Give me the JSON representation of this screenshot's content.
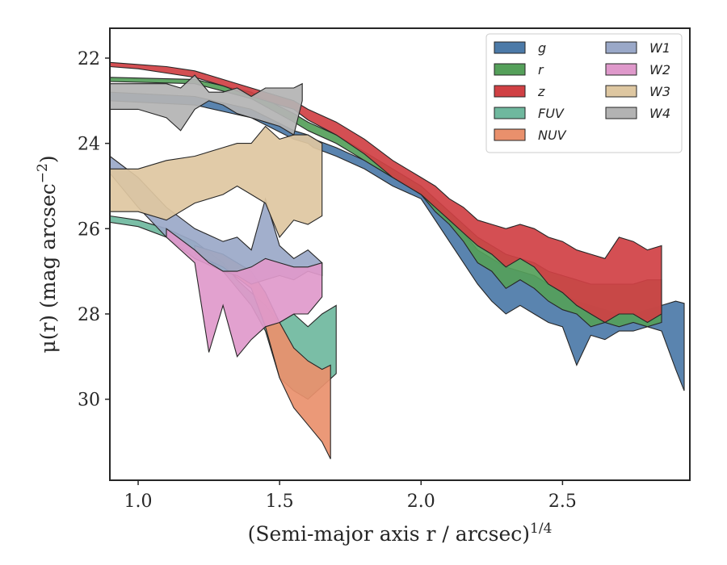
{
  "chart_data": {
    "type": "area",
    "title": "",
    "xlabel": "(Semi-major axis r / arcsec)",
    "xlabel_exponent": "1/4",
    "ylabel": "μ(r) (mag arcsec",
    "ylabel_exponent": "−2",
    "xlim": [
      0.9,
      2.95
    ],
    "ylim": [
      31.9,
      21.3
    ],
    "y_inverted": true,
    "xticks": [
      1.0,
      1.5,
      2.0,
      2.5
    ],
    "xtick_labels": [
      "1.0",
      "1.5",
      "2.0",
      "2.5"
    ],
    "yticks": [
      22,
      24,
      26,
      28,
      30
    ],
    "ytick_labels": [
      "22",
      "24",
      "26",
      "28",
      "30"
    ],
    "grid": false,
    "legend_position": "top-right",
    "legend_columns": 2,
    "series": [
      {
        "name": "g",
        "color": "#4c7aa8",
        "x": [
          0.9,
          1.2,
          1.4,
          1.55,
          1.6,
          1.62,
          1.7,
          1.8,
          1.9,
          2.0,
          2.05,
          2.1,
          2.15,
          2.2,
          2.25,
          2.3,
          2.35,
          2.4,
          2.45,
          2.5,
          2.55,
          2.6,
          2.65,
          2.7,
          2.75,
          2.8,
          2.85,
          2.9,
          2.93
        ],
        "y_upper": [
          22.8,
          22.9,
          23.2,
          23.7,
          23.8,
          23.9,
          24.1,
          24.4,
          24.8,
          25.1,
          25.4,
          25.8,
          26.1,
          26.5,
          26.7,
          26.9,
          27.0,
          27.1,
          27.3,
          27.5,
          27.7,
          27.8,
          27.9,
          28.0,
          28.0,
          27.9,
          27.8,
          27.7,
          27.75
        ],
        "y_lower": [
          23.0,
          23.1,
          23.4,
          23.9,
          24.0,
          24.1,
          24.3,
          24.6,
          25.0,
          25.3,
          25.8,
          26.3,
          26.8,
          27.3,
          27.7,
          28.0,
          27.8,
          28.0,
          28.2,
          28.3,
          29.2,
          28.5,
          28.6,
          28.4,
          28.4,
          28.3,
          28.4,
          29.3,
          29.8
        ]
      },
      {
        "name": "r",
        "color": "#55a05a",
        "x": [
          0.9,
          1.2,
          1.4,
          1.55,
          1.6,
          1.7,
          1.8,
          1.9,
          2.0,
          2.05,
          2.1,
          2.15,
          2.2,
          2.25,
          2.3,
          2.35,
          2.4,
          2.45,
          2.5,
          2.55,
          2.6,
          2.65,
          2.7,
          2.75,
          2.8,
          2.85
        ],
        "y_upper": [
          22.45,
          22.5,
          22.8,
          23.3,
          23.5,
          23.8,
          24.2,
          24.6,
          25.0,
          25.3,
          25.6,
          25.9,
          26.2,
          26.4,
          26.6,
          26.7,
          26.8,
          27.0,
          27.1,
          27.2,
          27.3,
          27.3,
          27.3,
          27.3,
          27.2,
          27.2
        ],
        "y_lower": [
          22.55,
          22.6,
          22.95,
          23.5,
          23.7,
          24.0,
          24.4,
          24.8,
          25.2,
          25.6,
          25.9,
          26.3,
          26.8,
          27.0,
          27.4,
          27.2,
          27.4,
          27.7,
          27.9,
          28.0,
          28.3,
          28.2,
          28.3,
          28.2,
          28.3,
          28.2
        ]
      },
      {
        "name": "z",
        "color": "#d04044",
        "x": [
          0.9,
          1.0,
          1.1,
          1.2,
          1.3,
          1.4,
          1.5,
          1.55,
          1.6,
          1.7,
          1.8,
          1.9,
          2.0,
          2.05,
          2.1,
          2.15,
          2.2,
          2.25,
          2.3,
          2.35,
          2.4,
          2.45,
          2.5,
          2.55,
          2.6,
          2.65,
          2.7,
          2.75,
          2.8,
          2.85
        ],
        "y_upper": [
          22.1,
          22.15,
          22.2,
          22.3,
          22.5,
          22.7,
          22.9,
          23.0,
          23.2,
          23.5,
          23.9,
          24.4,
          24.8,
          25.0,
          25.3,
          25.5,
          25.8,
          25.9,
          26.0,
          25.9,
          26.0,
          26.2,
          26.3,
          26.5,
          26.6,
          26.7,
          26.2,
          26.3,
          26.5,
          26.4
        ],
        "y_lower": [
          22.2,
          22.25,
          22.35,
          22.45,
          22.65,
          22.9,
          23.1,
          23.2,
          23.45,
          23.8,
          24.25,
          24.8,
          25.2,
          25.5,
          25.8,
          26.1,
          26.4,
          26.6,
          26.9,
          26.7,
          26.9,
          27.3,
          27.5,
          27.8,
          28.0,
          28.2,
          28.0,
          28.0,
          28.2,
          28.0
        ]
      },
      {
        "name": "FUV",
        "color": "#6fb89e",
        "x": [
          0.9,
          1.0,
          1.1,
          1.2,
          1.3,
          1.35,
          1.4,
          1.45,
          1.5,
          1.55,
          1.6,
          1.65,
          1.7
        ],
        "y_upper": [
          25.7,
          25.8,
          26.0,
          26.3,
          26.8,
          27.2,
          27.5,
          27.8,
          28.2,
          28.0,
          28.3,
          28.0,
          27.8
        ],
        "y_lower": [
          25.85,
          25.95,
          26.2,
          26.5,
          27.0,
          27.4,
          27.8,
          28.4,
          29.5,
          29.8,
          30.0,
          29.7,
          29.4
        ]
      },
      {
        "name": "NUV",
        "color": "#e9906c",
        "x": [
          1.2,
          1.3,
          1.4,
          1.45,
          1.5,
          1.55,
          1.6,
          1.65,
          1.68
        ],
        "y_upper": [
          26.4,
          26.6,
          27.0,
          27.5,
          28.2,
          28.8,
          29.1,
          29.3,
          29.2
        ],
        "y_lower": [
          26.6,
          26.9,
          27.4,
          28.3,
          29.5,
          30.2,
          30.6,
          31.0,
          31.4
        ]
      },
      {
        "name": "W1",
        "color": "#9aa8c8",
        "x": [
          0.9,
          1.0,
          1.1,
          1.2,
          1.3,
          1.35,
          1.4,
          1.45,
          1.5,
          1.55,
          1.6,
          1.65
        ],
        "y_upper": [
          24.3,
          24.8,
          25.5,
          26.0,
          26.3,
          26.2,
          26.5,
          25.3,
          26.4,
          26.7,
          26.5,
          26.8
        ],
        "y_lower": [
          24.7,
          25.5,
          26.2,
          26.7,
          27.0,
          27.1,
          27.3,
          27.2,
          27.1,
          27.2,
          27.0,
          27.1
        ]
      },
      {
        "name": "W2",
        "color": "#df99cb",
        "x": [
          1.1,
          1.2,
          1.25,
          1.3,
          1.35,
          1.4,
          1.45,
          1.5,
          1.55,
          1.6,
          1.65
        ],
        "y_upper": [
          26.0,
          26.5,
          26.8,
          27.0,
          27.0,
          26.9,
          26.7,
          26.8,
          26.9,
          26.9,
          26.8
        ],
        "y_lower": [
          26.2,
          26.8,
          28.9,
          27.8,
          29.0,
          28.6,
          28.3,
          28.2,
          28.0,
          28.0,
          27.6
        ]
      },
      {
        "name": "W3",
        "color": "#dec7a1",
        "x": [
          0.9,
          1.0,
          1.1,
          1.2,
          1.3,
          1.35,
          1.4,
          1.45,
          1.5,
          1.55,
          1.6,
          1.65
        ],
        "y_upper": [
          24.6,
          24.6,
          24.4,
          24.3,
          24.1,
          24.0,
          24.0,
          23.6,
          23.9,
          23.8,
          23.8,
          24.0
        ],
        "y_lower": [
          25.6,
          25.6,
          25.8,
          25.4,
          25.2,
          25.0,
          25.2,
          25.4,
          26.2,
          25.8,
          25.9,
          25.7
        ]
      },
      {
        "name": "W4",
        "color": "#b3b3b3",
        "x": [
          0.9,
          1.0,
          1.1,
          1.15,
          1.2,
          1.25,
          1.3,
          1.35,
          1.4,
          1.45,
          1.5,
          1.55,
          1.58
        ],
        "y_upper": [
          22.6,
          22.6,
          22.6,
          22.7,
          22.4,
          22.8,
          22.8,
          22.7,
          22.9,
          22.7,
          22.7,
          22.7,
          22.6
        ],
        "y_lower": [
          23.2,
          23.2,
          23.4,
          23.7,
          23.2,
          23.0,
          23.1,
          23.3,
          23.4,
          23.5,
          23.6,
          23.8,
          23.0
        ]
      }
    ]
  }
}
